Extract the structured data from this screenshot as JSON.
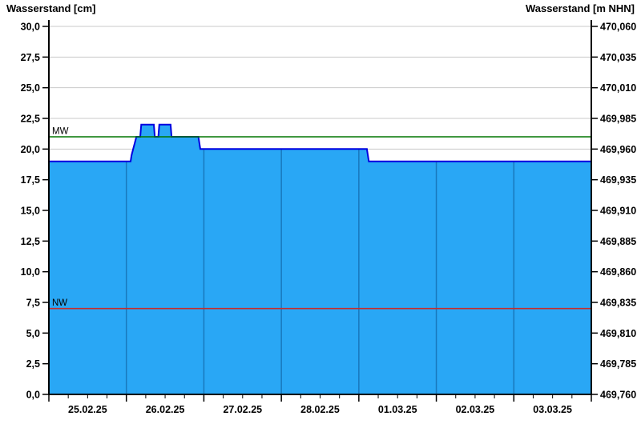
{
  "chart_data": {
    "type": "area",
    "title_left": "Wasserstand [cm]",
    "title_right": "Wasserstand [m NHN]",
    "x_axis": {
      "labels": [
        "25.02.25",
        "26.02.25",
        "27.02.25",
        "28.02.25",
        "01.03.25",
        "02.03.25",
        "03.03.25"
      ],
      "days_total": 7,
      "minor_ticks_per_day": 4,
      "range_note": "x axis spans 25.02.25 00:00 to 04.03.25 00:00, one major tick per day, minor ticks every 6 h"
    },
    "y_left": {
      "min": 0,
      "max": 30,
      "step": 2.5,
      "labels": [
        "0,0",
        "2,5",
        "5,0",
        "7,5",
        "10,0",
        "12,5",
        "15,0",
        "17,5",
        "20,0",
        "22,5",
        "25,0",
        "27,5",
        "30,0"
      ]
    },
    "y_right": {
      "min": 469.76,
      "max": 470.06,
      "step": 0.025,
      "labels": [
        "469,760",
        "469,785",
        "469,810",
        "469,835",
        "469,860",
        "469,885",
        "469,910",
        "469,935",
        "469,960",
        "469,985",
        "470,010",
        "470,035",
        "470,060"
      ]
    },
    "series": {
      "name": "Wasserstand",
      "unit": "cm",
      "points_hours_cm": [
        [
          0,
          19
        ],
        [
          25.3,
          19
        ],
        [
          25.6,
          19.5
        ],
        [
          26.1,
          20
        ],
        [
          26.6,
          20.5
        ],
        [
          27.1,
          21
        ],
        [
          28.3,
          21
        ],
        [
          28.6,
          22
        ],
        [
          32.5,
          22
        ],
        [
          32.8,
          21
        ],
        [
          33.9,
          21
        ],
        [
          34.2,
          22
        ],
        [
          37.7,
          22
        ],
        [
          38.0,
          21
        ],
        [
          46.3,
          21
        ],
        [
          46.6,
          20.5
        ],
        [
          46.9,
          20
        ],
        [
          98.5,
          20
        ],
        [
          98.8,
          19.5
        ],
        [
          99.1,
          19
        ],
        [
          168,
          19
        ]
      ]
    },
    "reference_lines": [
      {
        "label": "MW",
        "value_cm": 21,
        "color": "#007700"
      },
      {
        "label": "NW",
        "value_cm": 7,
        "color": "#c32d2d"
      }
    ],
    "colors": {
      "fill": "#29a7f5",
      "line": "#0000e0",
      "grid": "#c9c9c9",
      "axis": "#000000",
      "day_divider": "#1878bc"
    },
    "grid": {
      "horizontal": true,
      "vertical_inside_area_only": true
    },
    "legend_position": "none"
  }
}
